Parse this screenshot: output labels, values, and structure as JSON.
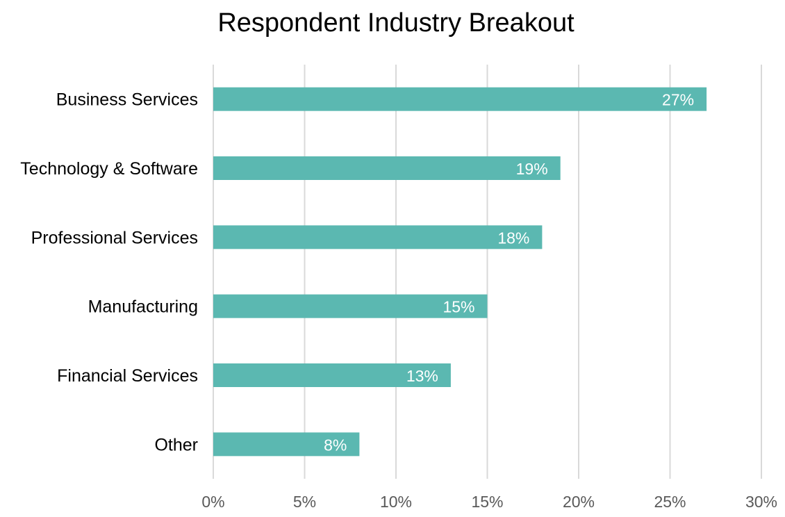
{
  "chart_data": {
    "type": "bar",
    "orientation": "horizontal",
    "title": "Respondent Industry Breakout",
    "categories": [
      "Business Services",
      "Technology & Software",
      "Professional Services",
      "Manufacturing",
      "Financial Services",
      "Other"
    ],
    "values": [
      27,
      19,
      18,
      15,
      13,
      8
    ],
    "data_labels": [
      "27%",
      "19%",
      "18%",
      "15%",
      "13%",
      "8%"
    ],
    "xlim": [
      0,
      30
    ],
    "x_ticks": [
      0,
      5,
      10,
      15,
      20,
      25,
      30
    ],
    "x_tick_labels": [
      "0%",
      "5%",
      "10%",
      "15%",
      "20%",
      "25%",
      "30%"
    ],
    "xlabel": "",
    "ylabel": "",
    "grid": true,
    "legend": "none",
    "bar_color": "#5bb8b1"
  }
}
